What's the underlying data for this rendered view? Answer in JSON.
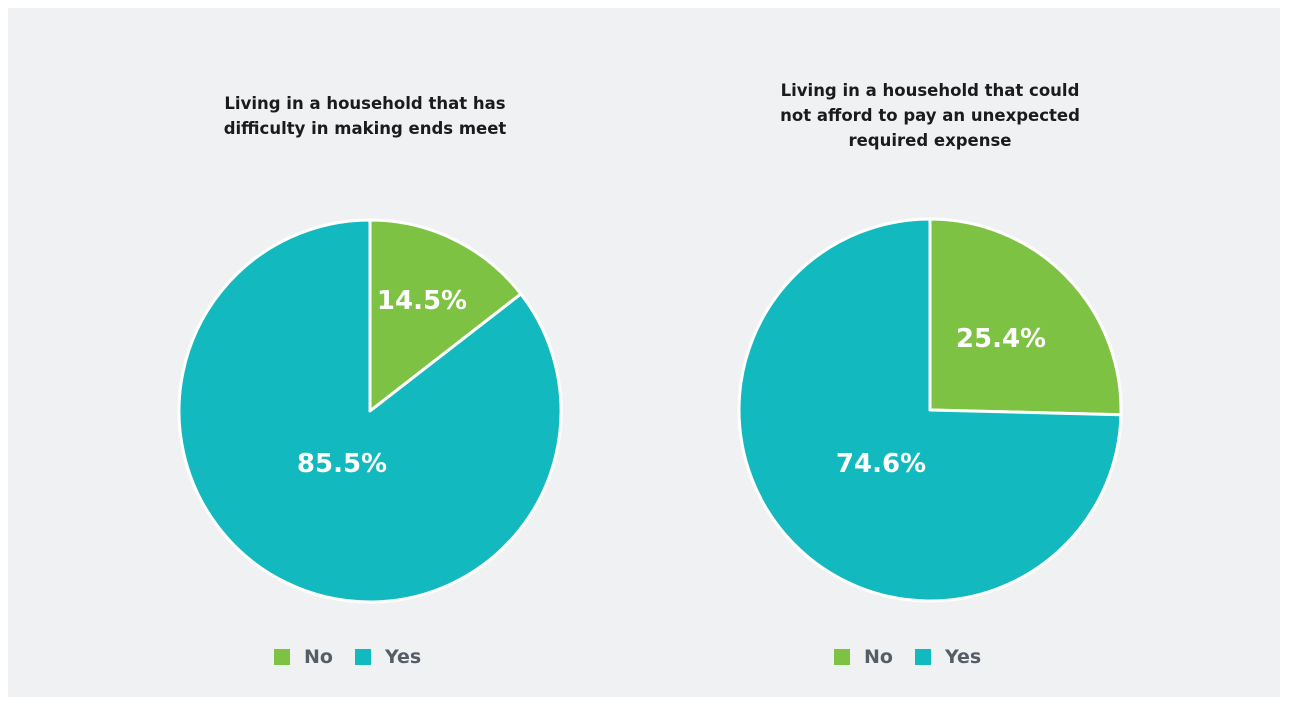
{
  "colors": {
    "no": "#7dc242",
    "yes": "#12b9bf",
    "background": "#eff1f3"
  },
  "chart_data": [
    {
      "type": "pie",
      "title": "Living in a household that has difficulty in making ends meet",
      "title_lines": [
        "Living in a household that has",
        "difficulty in making ends meet"
      ],
      "categories": [
        "No",
        "Yes"
      ],
      "values": [
        14.5,
        85.5
      ],
      "labels": [
        "14.5%",
        "85.5%"
      ],
      "legend": [
        "No",
        "Yes"
      ],
      "legend_placement": "bottom"
    },
    {
      "type": "pie",
      "title": "Living in a household that could not afford to pay an unexpected required expense",
      "title_lines": [
        "Living in a household that could",
        "not afford to pay an unexpected",
        "required expense"
      ],
      "categories": [
        "No",
        "Yes"
      ],
      "values": [
        25.4,
        74.6
      ],
      "labels": [
        "25.4%",
        "74.6%"
      ],
      "legend": [
        "No",
        "Yes"
      ],
      "legend_placement": "bottom"
    }
  ]
}
